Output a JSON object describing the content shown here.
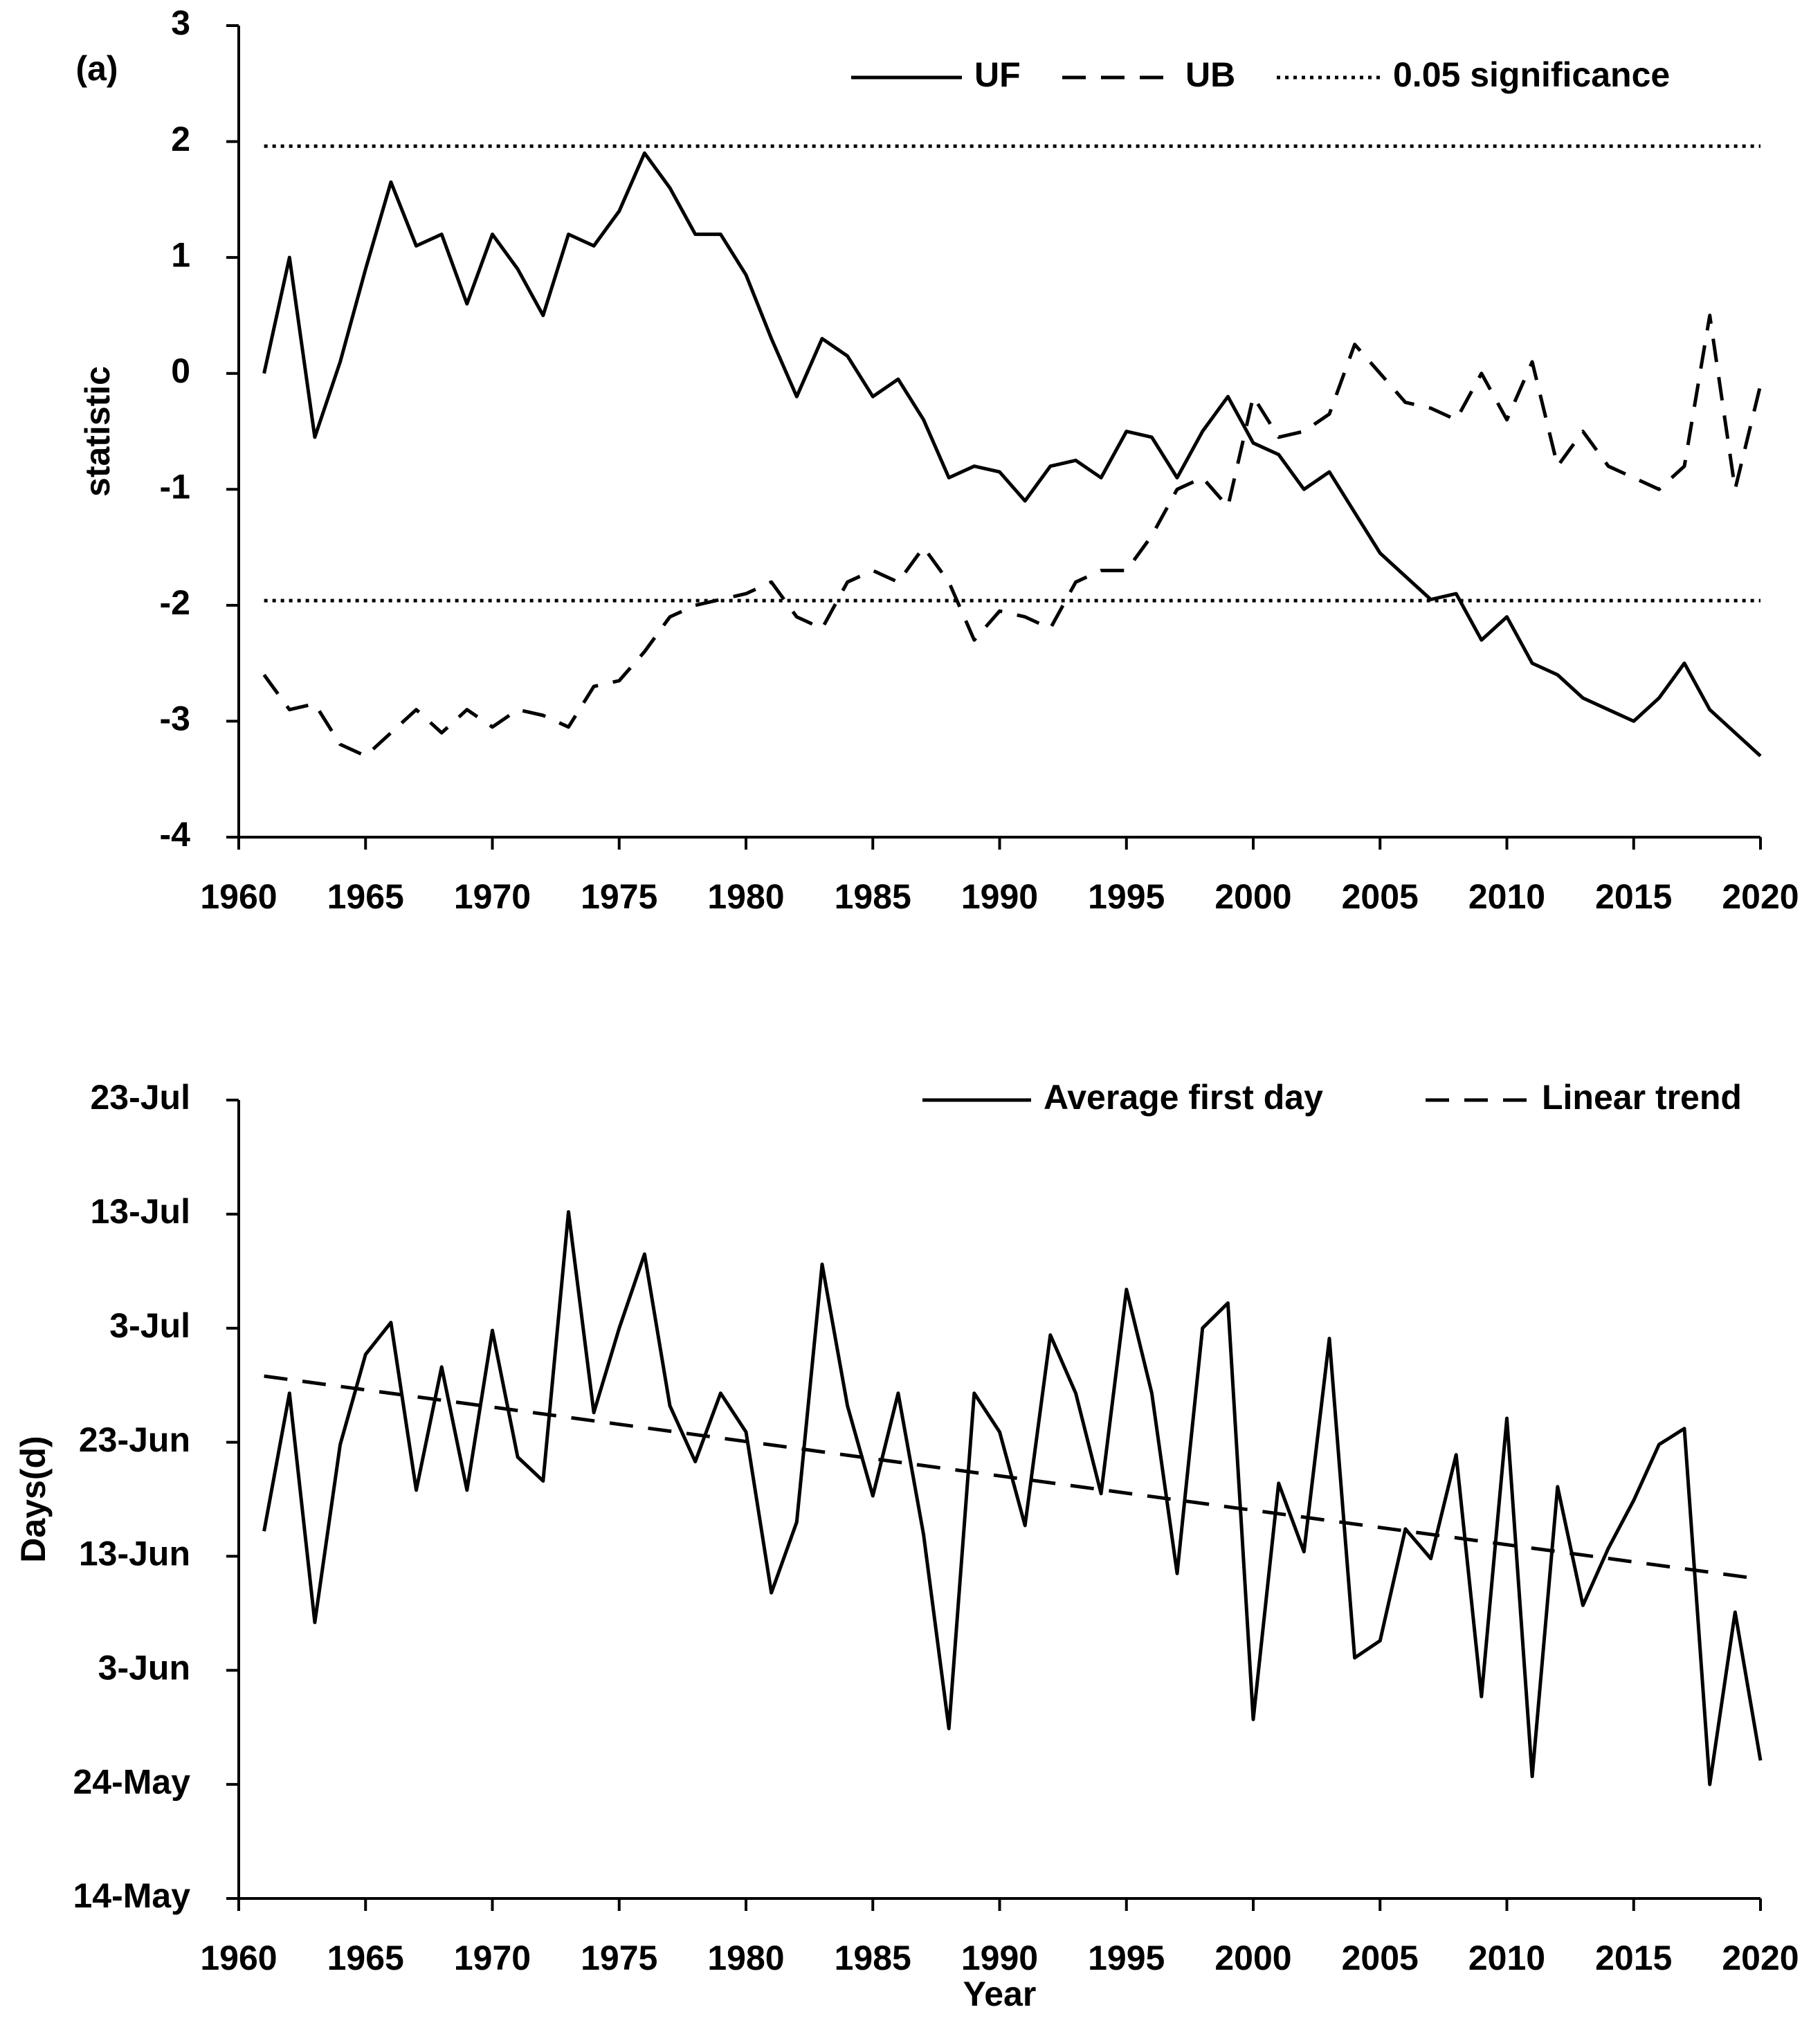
{
  "chart_data": [
    {
      "type": "line",
      "annotation": "(a)",
      "y_label": "statistic",
      "xlim": [
        1960,
        2020
      ],
      "xticks": [
        1960,
        1965,
        1970,
        1975,
        1980,
        1985,
        1990,
        1995,
        2000,
        2005,
        2010,
        2015,
        2020
      ],
      "ylim": [
        -4,
        3
      ],
      "yticks": [
        -4,
        -3,
        -2,
        -1,
        0,
        1,
        2,
        3
      ],
      "x": [
        1961,
        1962,
        1963,
        1964,
        1965,
        1966,
        1967,
        1968,
        1969,
        1970,
        1971,
        1972,
        1973,
        1974,
        1975,
        1976,
        1977,
        1978,
        1979,
        1980,
        1981,
        1982,
        1983,
        1984,
        1985,
        1986,
        1987,
        1988,
        1989,
        1990,
        1991,
        1992,
        1993,
        1994,
        1995,
        1996,
        1997,
        1998,
        1999,
        2000,
        2001,
        2002,
        2003,
        2004,
        2005,
        2006,
        2007,
        2008,
        2009,
        2010,
        2011,
        2012,
        2013,
        2014,
        2015,
        2016,
        2017,
        2018,
        2019,
        2020
      ],
      "series": [
        {
          "name": "UF",
          "color": "#000000",
          "style": "solid",
          "values": [
            0,
            1.0,
            -0.55,
            0.1,
            0.9,
            1.65,
            1.1,
            1.2,
            0.6,
            1.2,
            0.9,
            0.5,
            1.2,
            1.1,
            1.4,
            1.9,
            1.6,
            1.2,
            1.2,
            0.85,
            0.3,
            -0.2,
            0.3,
            0.15,
            -0.2,
            -0.05,
            -0.4,
            -0.9,
            -0.8,
            -0.85,
            -1.1,
            -0.8,
            -0.75,
            -0.9,
            -0.5,
            -0.55,
            -0.9,
            -0.5,
            -0.2,
            -0.6,
            -0.7,
            -1.0,
            -0.85,
            -1.2,
            -1.55,
            -1.75,
            -1.95,
            -1.9,
            -2.3,
            -2.1,
            -2.5,
            -2.6,
            -2.8,
            -2.9,
            -3.0,
            -2.8,
            -2.5,
            -2.9,
            -3.1,
            -3.3
          ]
        },
        {
          "name": "UB",
          "color": "#000000",
          "style": "dashed",
          "values": [
            -2.6,
            -2.9,
            -2.85,
            -3.2,
            -3.3,
            -3.1,
            -2.9,
            -3.1,
            -2.9,
            -3.05,
            -2.9,
            -2.95,
            -3.05,
            -2.7,
            -2.65,
            -2.4,
            -2.1,
            -2.0,
            -1.95,
            -1.9,
            -1.8,
            -2.1,
            -2.2,
            -1.8,
            -1.7,
            -1.8,
            -1.5,
            -1.8,
            -2.3,
            -2.05,
            -2.1,
            -2.2,
            -1.8,
            -1.7,
            -1.7,
            -1.4,
            -1.0,
            -0.9,
            -1.15,
            -0.2,
            -0.55,
            -0.5,
            -0.35,
            0.25,
            0.0,
            -0.25,
            -0.3,
            -0.4,
            0.0,
            -0.4,
            0.1,
            -0.8,
            -0.5,
            -0.8,
            -0.9,
            -1.0,
            -0.8,
            0.5,
            -1.0,
            -0.1
          ]
        },
        {
          "name": "0.05 significance",
          "color": "#000000",
          "style": "dotted",
          "levels": [
            1.96,
            -1.96
          ]
        }
      ]
    },
    {
      "type": "line",
      "y_label": "Days(d)",
      "x_label": "Year",
      "xlim": [
        1960,
        2020
      ],
      "xticks": [
        1960,
        1965,
        1970,
        1975,
        1980,
        1985,
        1990,
        1995,
        2000,
        2005,
        2010,
        2015,
        2020
      ],
      "ylim": [
        134,
        204
      ],
      "yticks": [
        {
          "value": 134,
          "label": "14-May"
        },
        {
          "value": 144,
          "label": "24-May"
        },
        {
          "value": 154,
          "label": "3-Jun"
        },
        {
          "value": 164,
          "label": "13-Jun"
        },
        {
          "value": 174,
          "label": "23-Jun"
        },
        {
          "value": 184,
          "label": "3-Jul"
        },
        {
          "value": 194,
          "label": "13-Jul"
        },
        {
          "value": 204,
          "label": "23-Jul"
        }
      ],
      "x": [
        1961,
        1962,
        1963,
        1964,
        1965,
        1966,
        1967,
        1968,
        1969,
        1970,
        1971,
        1972,
        1973,
        1974,
        1975,
        1976,
        1977,
        1978,
        1979,
        1980,
        1981,
        1982,
        1983,
        1984,
        1985,
        1986,
        1987,
        1988,
        1989,
        1990,
        1991,
        1992,
        1993,
        1994,
        1995,
        1996,
        1997,
        1998,
        1999,
        2000,
        2001,
        2002,
        2003,
        2004,
        2005,
        2006,
        2007,
        2008,
        2009,
        2010,
        2011,
        2012,
        2013,
        2014,
        2015,
        2016,
        2017,
        2018,
        2019,
        2020
      ],
      "series": [
        {
          "name": "Average first day",
          "color": "#000000",
          "style": "solid",
          "values": [
            166.2,
            178.3,
            158.2,
            173.8,
            181.7,
            184.5,
            169.8,
            180.6,
            169.8,
            183.8,
            172.7,
            170.6,
            194.2,
            176.6,
            184.0,
            190.5,
            177.2,
            172.3,
            178.3,
            174.9,
            160.8,
            167.0,
            189.6,
            177.2,
            169.3,
            178.3,
            165.9,
            148.9,
            178.3,
            174.9,
            166.7,
            183.4,
            178.3,
            169.5,
            187.4,
            178.3,
            162.5,
            184.0,
            186.2,
            149.7,
            170.4,
            164.4,
            183.1,
            155.1,
            156.6,
            166.4,
            163.8,
            172.9,
            151.7,
            176.1,
            144.7,
            170.1,
            159.7,
            164.7,
            168.9,
            173.8,
            175.2,
            144.0,
            159.1,
            146.1
          ]
        },
        {
          "name": "Linear trend",
          "color": "#000000",
          "style": "dashed",
          "x": [
            1961,
            2020
          ],
          "values": [
            179.8,
            162.0
          ]
        }
      ]
    }
  ]
}
